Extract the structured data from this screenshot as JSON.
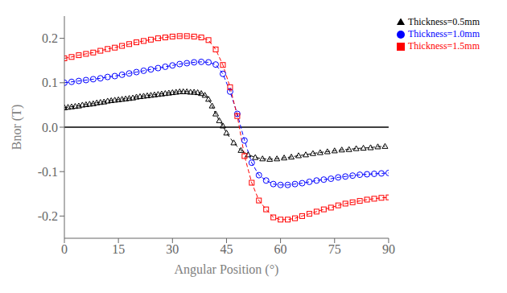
{
  "chart_data": {
    "type": "line",
    "xlabel": "Angular Position (°)",
    "ylabel": "Bnor (T)",
    "xlim": [
      0,
      90
    ],
    "ylim": [
      -0.25,
      0.25
    ],
    "xticks": [
      0,
      15,
      30,
      45,
      60,
      75,
      90
    ],
    "yticks": [
      -0.2,
      -0.1,
      {
        "value": 0.0,
        "label": "0.0"
      },
      0.1,
      0.2
    ],
    "legend": "upper right",
    "hline_y": 0.0,
    "series": [
      {
        "name": "Thickness=0.5mm",
        "color": "black",
        "marker": "triangle",
        "line_style": "dashed",
        "x": [
          0,
          1,
          2,
          3,
          4,
          5,
          6,
          7,
          8,
          9,
          10,
          11,
          12,
          13,
          14,
          15,
          16,
          17,
          18,
          19,
          20,
          21,
          22,
          23,
          24,
          25,
          26,
          27,
          28,
          29,
          30,
          31,
          32,
          33,
          34,
          35,
          36,
          37,
          38,
          39,
          40,
          41,
          42,
          43,
          44,
          45,
          47,
          49,
          51,
          53,
          55,
          57,
          59,
          61,
          63,
          65,
          67,
          69,
          71,
          73,
          75,
          77,
          79,
          81,
          83,
          85,
          87,
          89
        ],
        "values": [
          0.044,
          0.045,
          0.046,
          0.047,
          0.048,
          0.05,
          0.051,
          0.052,
          0.053,
          0.055,
          0.056,
          0.057,
          0.059,
          0.06,
          0.061,
          0.062,
          0.063,
          0.064,
          0.065,
          0.066,
          0.068,
          0.069,
          0.07,
          0.071,
          0.072,
          0.073,
          0.074,
          0.075,
          0.076,
          0.077,
          0.078,
          0.079,
          0.08,
          0.08,
          0.08,
          0.079,
          0.079,
          0.078,
          0.076,
          0.072,
          0.063,
          0.048,
          0.03,
          0.015,
          0.003,
          -0.013,
          -0.035,
          -0.052,
          -0.062,
          -0.068,
          -0.071,
          -0.072,
          -0.071,
          -0.069,
          -0.067,
          -0.064,
          -0.062,
          -0.059,
          -0.057,
          -0.055,
          -0.053,
          -0.051,
          -0.05,
          -0.048,
          -0.047,
          -0.046,
          -0.044,
          -0.043
        ]
      },
      {
        "name": "Thickness=1.0mm",
        "color": "blue",
        "marker": "circle",
        "line_style": "dashed",
        "x": [
          0,
          2,
          4,
          6,
          8,
          10,
          12,
          14,
          16,
          18,
          20,
          22,
          24,
          26,
          28,
          30,
          32,
          34,
          36,
          38,
          40,
          42,
          44,
          46,
          48,
          50,
          52,
          54,
          56,
          58,
          60,
          62,
          64,
          66,
          68,
          70,
          72,
          74,
          76,
          78,
          80,
          82,
          84,
          86,
          88,
          90
        ],
        "values": [
          0.1,
          0.102,
          0.104,
          0.106,
          0.108,
          0.11,
          0.113,
          0.115,
          0.118,
          0.121,
          0.124,
          0.127,
          0.13,
          0.133,
          0.136,
          0.139,
          0.142,
          0.144,
          0.146,
          0.147,
          0.146,
          0.141,
          0.12,
          0.08,
          0.03,
          -0.03,
          -0.08,
          -0.108,
          -0.12,
          -0.128,
          -0.13,
          -0.13,
          -0.128,
          -0.126,
          -0.123,
          -0.12,
          -0.118,
          -0.116,
          -0.113,
          -0.111,
          -0.109,
          -0.107,
          -0.106,
          -0.105,
          -0.104,
          -0.103
        ]
      },
      {
        "name": "Thickness=1.5mm",
        "color": "red",
        "marker": "square",
        "line_style": "dashed",
        "x": [
          0,
          2,
          4,
          6,
          8,
          10,
          12,
          14,
          16,
          18,
          20,
          22,
          24,
          26,
          28,
          30,
          32,
          34,
          36,
          38,
          40,
          42,
          44,
          46,
          48,
          50,
          52,
          54,
          56,
          58,
          60,
          62,
          64,
          66,
          68,
          70,
          72,
          74,
          76,
          78,
          80,
          82,
          84,
          86,
          88,
          90
        ],
        "values": [
          0.155,
          0.158,
          0.162,
          0.165,
          0.168,
          0.172,
          0.176,
          0.179,
          0.183,
          0.187,
          0.191,
          0.194,
          0.197,
          0.2,
          0.202,
          0.204,
          0.205,
          0.205,
          0.204,
          0.202,
          0.196,
          0.175,
          0.14,
          0.09,
          0.025,
          -0.065,
          -0.125,
          -0.165,
          -0.185,
          -0.203,
          -0.208,
          -0.208,
          -0.205,
          -0.2,
          -0.195,
          -0.19,
          -0.185,
          -0.181,
          -0.176,
          -0.172,
          -0.169,
          -0.166,
          -0.163,
          -0.161,
          -0.159,
          -0.158
        ]
      }
    ]
  }
}
